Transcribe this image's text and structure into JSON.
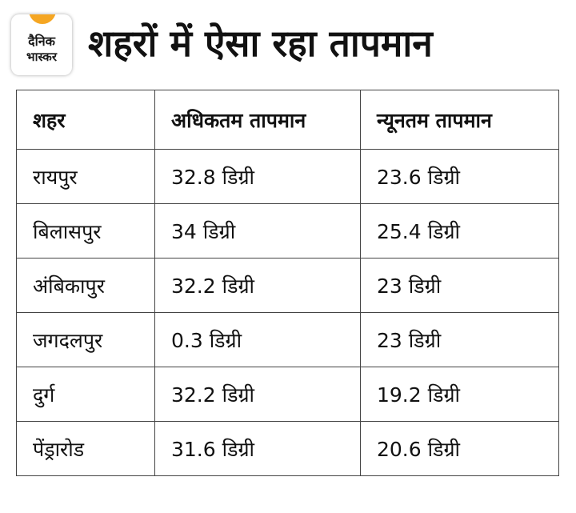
{
  "brand": {
    "logo_line1": "दैनिक",
    "logo_line2": "भास्कर",
    "accent_color": "#f5a623"
  },
  "title": "शहरों में ऐसा रहा तापमान",
  "table": {
    "headers": [
      "शहर",
      "अधिकतम तापमान",
      "न्यूनतम तापमान"
    ],
    "rows": [
      [
        "रायपुर",
        "32.8 डिग्री",
        "23.6 डिग्री"
      ],
      [
        "बिलासपुर",
        "34 डिग्री",
        "25.4 डिग्री"
      ],
      [
        "अंबिकापुर",
        "32.2 डिग्री",
        "23 डिग्री"
      ],
      [
        "जगदलपुर",
        "0.3 डिग्री",
        "23 डिग्री"
      ],
      [
        "दुर्ग",
        "32.2 डिग्री",
        "19.2 डिग्री"
      ],
      [
        "पेंड्रारोड",
        "31.6 डिग्री",
        "20.6 डिग्री"
      ]
    ]
  }
}
